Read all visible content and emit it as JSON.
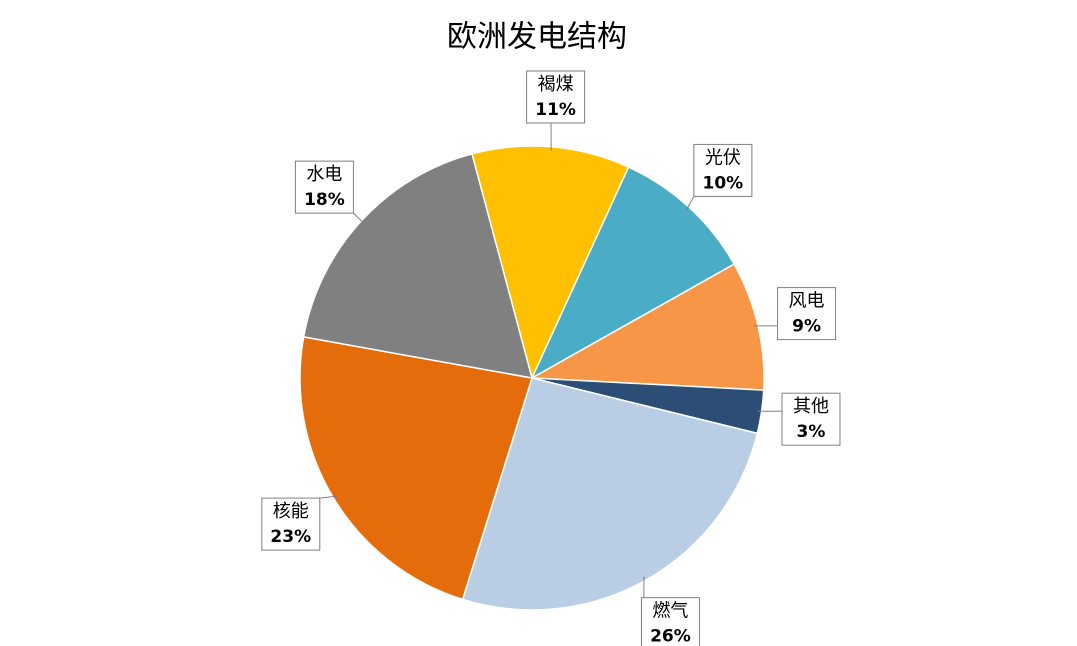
{
  "chart_data": {
    "type": "pie",
    "title": "欧洲发电结构",
    "categories": [
      "褐煤",
      "光伏",
      "风电",
      "其他",
      "燃气",
      "核能",
      "水电"
    ],
    "values": [
      11,
      10,
      9,
      3,
      26,
      23,
      18
    ],
    "value_labels": [
      "11%",
      "10%",
      "9%",
      "3%",
      "26%",
      "23%",
      "18%"
    ],
    "colors": [
      "#ffc000",
      "#4bacc6",
      "#f79646",
      "#2c4d75",
      "#b9cde5",
      "#e46c0a",
      "#808080"
    ],
    "start_angle": -15
  }
}
